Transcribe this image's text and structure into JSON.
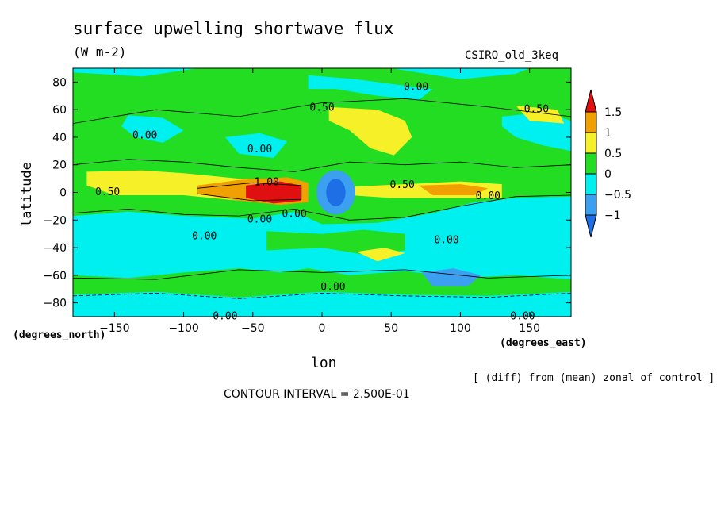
{
  "chart_data": {
    "type": "heatmap",
    "title": "surface upwelling shortwave flux",
    "units": "(W m-2)",
    "model": "CSIRO_old_3keq",
    "xlabel": "lon",
    "ylabel": "latitude",
    "x_units_label": "(degrees_east)",
    "y_units_label": "(degrees_north)",
    "xlim": [
      -180,
      180
    ],
    "ylim": [
      -90,
      90
    ],
    "x_ticks": [
      -150,
      -100,
      -50,
      0,
      50,
      100,
      150
    ],
    "y_ticks": [
      80,
      60,
      40,
      20,
      0,
      -20,
      -40,
      -60,
      -80
    ],
    "colorbar": {
      "levels": [
        1.5,
        1,
        0.5,
        0,
        -0.5,
        -1
      ],
      "colors": {
        "below_-1": "#1e6ee6",
        "-1_to_-0.5": "#3ca0f0",
        "-0.5_to_0": "#00f0f0",
        "0_to_0.5": "#22dd22",
        "0.5_to_1": "#f5f028",
        "1_to_1.5": "#f0a000",
        "above_1.5": "#e01010"
      }
    },
    "contour_labels": [
      {
        "text": "0.00",
        "lon": 68,
        "lat": 77
      },
      {
        "text": "0.50",
        "lon": 0,
        "lat": 62
      },
      {
        "text": "0.50",
        "lon": 155,
        "lat": 61
      },
      {
        "text": "0.00",
        "lon": -128,
        "lat": 42
      },
      {
        "text": "0.00",
        "lon": -45,
        "lat": 32
      },
      {
        "text": "0.50",
        "lon": -155,
        "lat": 1
      },
      {
        "text": "1.00",
        "lon": -40,
        "lat": 8
      },
      {
        "text": "0.50",
        "lon": 58,
        "lat": 6
      },
      {
        "text": "0.00",
        "lon": 120,
        "lat": -2
      },
      {
        "text": "0.00",
        "lon": -45,
        "lat": -19
      },
      {
        "text": "0.00",
        "lon": -20,
        "lat": -15
      },
      {
        "text": "0.00",
        "lon": -85,
        "lat": -31
      },
      {
        "text": "0.00",
        "lon": 90,
        "lat": -34
      },
      {
        "text": "0.00",
        "lon": 8,
        "lat": -68
      },
      {
        "text": "0.00",
        "lon": -70,
        "lat": -89
      },
      {
        "text": "0.00",
        "lon": 145,
        "lat": -89
      }
    ],
    "notes": "[ (diff) from (mean) zonal of control ]",
    "contour_interval": "CONTOUR INTERVAL = 2.500E-01"
  }
}
